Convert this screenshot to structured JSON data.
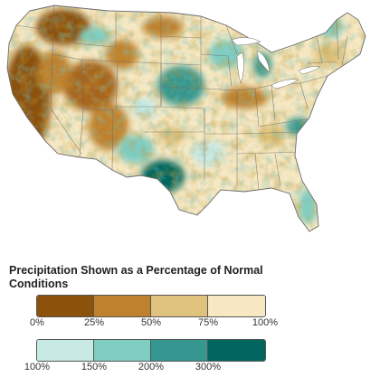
{
  "legend": {
    "title": "Precipitation Shown as a Percentage of Normal Conditions",
    "below_normal": {
      "bins": [
        {
          "range": [
            0,
            25
          ],
          "color": "#8c510a"
        },
        {
          "range": [
            25,
            50
          ],
          "color": "#bf812d"
        },
        {
          "range": [
            50,
            75
          ],
          "color": "#dfc27d"
        },
        {
          "range": [
            75,
            100
          ],
          "color": "#f6e8c3"
        }
      ],
      "tick_labels": [
        "0%",
        "25%",
        "50%",
        "75%",
        "100%"
      ]
    },
    "above_normal": {
      "bins": [
        {
          "range": [
            100,
            150
          ],
          "color": "#c7eae5"
        },
        {
          "range": [
            150,
            200
          ],
          "color": "#80cdc1"
        },
        {
          "range": [
            200,
            300
          ],
          "color": "#35978f"
        },
        {
          "range": [
            300,
            null
          ],
          "color": "#01665e"
        }
      ],
      "tick_labels": [
        "100%",
        "150%",
        "200%",
        "300%"
      ]
    }
  },
  "map": {
    "land_base_color": "#f6e8c3",
    "border_color": "#6b6b6b"
  }
}
